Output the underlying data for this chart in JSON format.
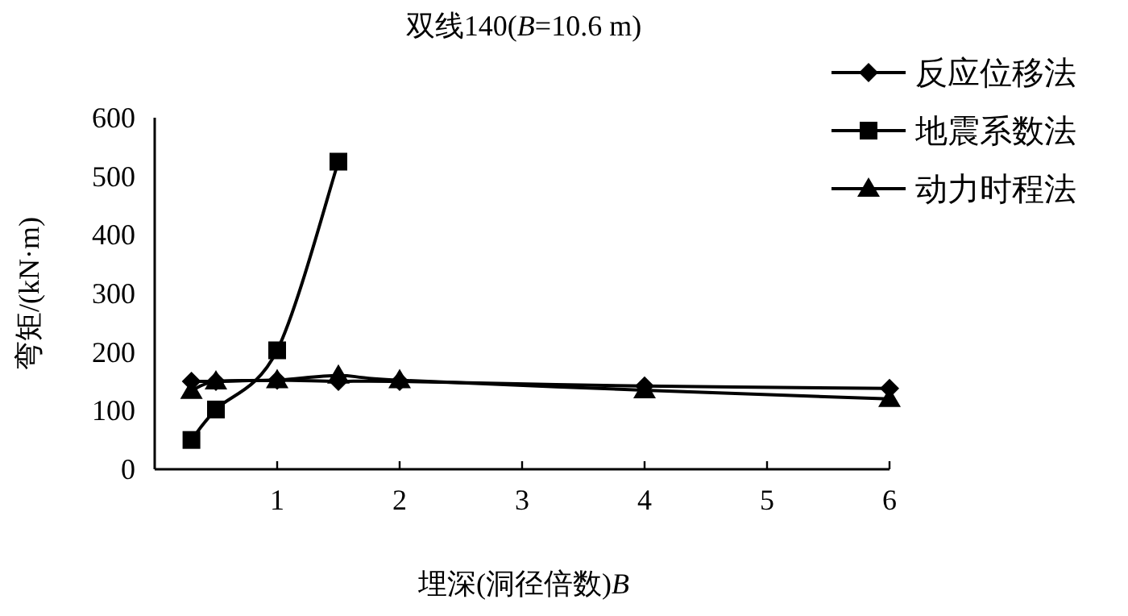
{
  "chart_data": {
    "type": "line",
    "title": "双线140(*B*=10.6 m)",
    "xlabel": "埋深(洞径倍数)*B*",
    "ylabel": "弯矩/(kN·m)",
    "x": [
      0.3,
      0.5,
      1,
      1.5,
      2,
      4,
      6
    ],
    "series": [
      {
        "name": "反应位移法",
        "color": "#000000",
        "marker": "diamond",
        "values": [
          150,
          150,
          152,
          150,
          150,
          142,
          138
        ]
      },
      {
        "name": "地震系数法",
        "color": "#000000",
        "marker": "square",
        "x": [
          0.3,
          0.5,
          1,
          1.5
        ],
        "values": [
          50,
          102,
          203,
          525
        ]
      },
      {
        "name": "动力时程法",
        "color": "#000000",
        "marker": "triangle",
        "values": [
          134,
          150,
          152,
          160,
          152,
          135,
          120
        ]
      }
    ],
    "xlim": [
      0,
      6
    ],
    "xticks": [
      1,
      2,
      3,
      4,
      5,
      6
    ],
    "ylim": [
      0,
      600
    ],
    "yticks": [
      0,
      100,
      200,
      300,
      400,
      500,
      600
    ],
    "grid": false,
    "legend": "top right",
    "line_style": "solid"
  }
}
